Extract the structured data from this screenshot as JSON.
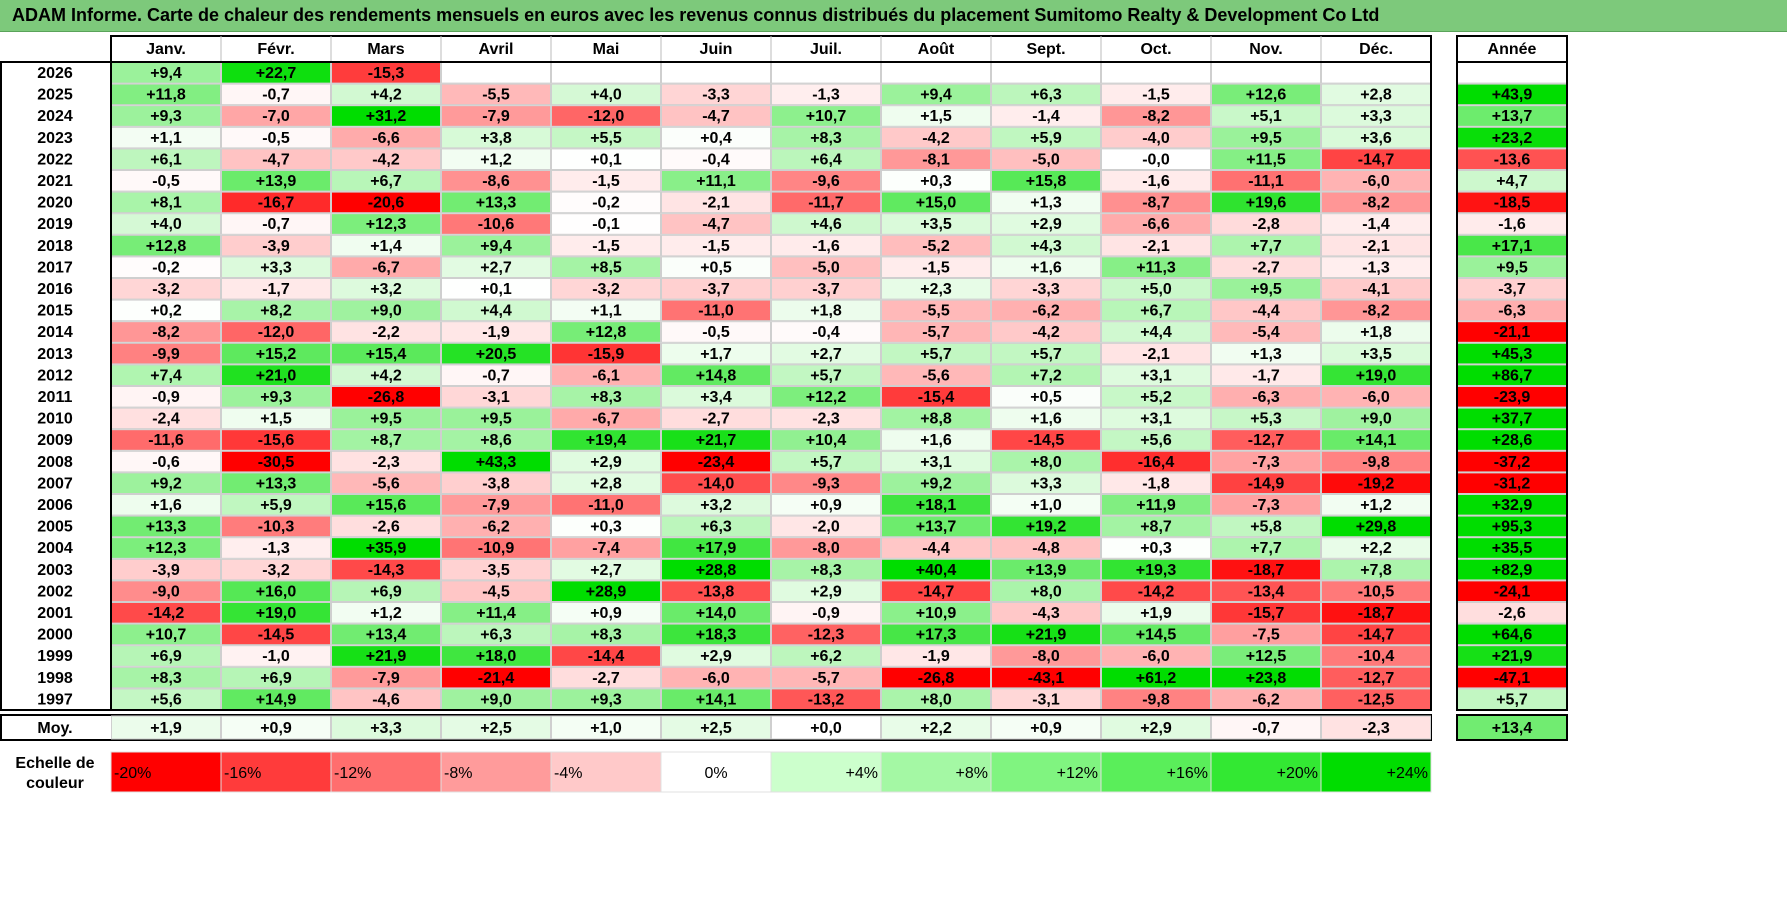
{
  "title": "ADAM Informe. Carte de chaleur des rendements mensuels en euros avec les revenus connus distribués du placement Sumitomo Realty & Development Co Ltd",
  "chart_data": {
    "type": "heatmap",
    "title": "ADAM Informe. Carte de chaleur des rendements mensuels en euros avec les revenus connus distribués du placement Sumitomo Realty & Development Co Ltd",
    "months": [
      "Janv.",
      "Févr.",
      "Mars",
      "Avril",
      "Mai",
      "Juin",
      "Juil.",
      "Août",
      "Sept.",
      "Oct.",
      "Nov.",
      "Déc."
    ],
    "year_header": "Année",
    "rows": [
      {
        "year": "2026",
        "values": [
          9.4,
          22.7,
          -15.3,
          null,
          null,
          null,
          null,
          null,
          null,
          null,
          null,
          null
        ],
        "annual": null
      },
      {
        "year": "2025",
        "values": [
          11.8,
          -0.7,
          4.2,
          -5.5,
          4.0,
          -3.3,
          -1.3,
          9.4,
          6.3,
          -1.5,
          12.6,
          2.8
        ],
        "annual": 43.9
      },
      {
        "year": "2024",
        "values": [
          9.3,
          -7.0,
          31.2,
          -7.9,
          -12.0,
          -4.7,
          10.7,
          1.5,
          -1.4,
          -8.2,
          5.1,
          3.3
        ],
        "annual": 13.7
      },
      {
        "year": "2023",
        "values": [
          1.1,
          -0.5,
          -6.6,
          3.8,
          5.5,
          0.4,
          8.3,
          -4.2,
          5.9,
          -4.0,
          9.5,
          3.6
        ],
        "annual": 23.2
      },
      {
        "year": "2022",
        "values": [
          6.1,
          -4.7,
          -4.2,
          1.2,
          0.1,
          -0.4,
          6.4,
          -8.1,
          -5.0,
          -0.0,
          11.5,
          -14.7
        ],
        "annual": -13.6
      },
      {
        "year": "2021",
        "values": [
          -0.5,
          13.9,
          6.7,
          -8.6,
          -1.5,
          11.1,
          -9.6,
          0.3,
          15.8,
          -1.6,
          -11.1,
          -6.0
        ],
        "annual": 4.7
      },
      {
        "year": "2020",
        "values": [
          8.1,
          -16.7,
          -20.6,
          13.3,
          -0.2,
          -2.1,
          -11.7,
          15.0,
          1.3,
          -8.7,
          19.6,
          -8.2
        ],
        "annual": -18.5
      },
      {
        "year": "2019",
        "values": [
          4.0,
          -0.7,
          12.3,
          -10.6,
          -0.1,
          -4.7,
          4.6,
          3.5,
          2.9,
          -6.6,
          -2.8,
          -1.4
        ],
        "annual": -1.6
      },
      {
        "year": "2018",
        "values": [
          12.8,
          -3.9,
          1.4,
          9.4,
          -1.5,
          -1.5,
          -1.6,
          -5.2,
          4.3,
          -2.1,
          7.7,
          -2.1
        ],
        "annual": 17.1
      },
      {
        "year": "2017",
        "values": [
          -0.2,
          3.3,
          -6.7,
          2.7,
          8.5,
          0.5,
          -5.0,
          -1.5,
          1.6,
          11.3,
          -2.7,
          -1.3
        ],
        "annual": 9.5
      },
      {
        "year": "2016",
        "values": [
          -3.2,
          -1.7,
          3.2,
          0.1,
          -3.2,
          -3.7,
          -3.7,
          2.3,
          -3.3,
          5.0,
          9.5,
          -4.1
        ],
        "annual": -3.7
      },
      {
        "year": "2015",
        "values": [
          0.2,
          8.2,
          9.0,
          4.4,
          1.1,
          -11.0,
          1.8,
          -5.5,
          -6.2,
          6.7,
          -4.4,
          -8.2
        ],
        "annual": -6.3
      },
      {
        "year": "2014",
        "values": [
          -8.2,
          -12.0,
          -2.2,
          -1.9,
          12.8,
          -0.5,
          -0.4,
          -5.7,
          -4.2,
          4.4,
          -5.4,
          1.8
        ],
        "annual": -21.1
      },
      {
        "year": "2013",
        "values": [
          -9.9,
          15.2,
          15.4,
          20.5,
          -15.9,
          1.7,
          2.7,
          5.7,
          5.7,
          -2.1,
          1.3,
          3.5
        ],
        "annual": 45.3
      },
      {
        "year": "2012",
        "values": [
          7.4,
          21.0,
          4.2,
          -0.7,
          -6.1,
          14.8,
          5.7,
          -5.6,
          7.2,
          3.1,
          -1.7,
          19.0
        ],
        "annual": 86.7
      },
      {
        "year": "2011",
        "values": [
          -0.9,
          9.3,
          -26.8,
          -3.1,
          8.3,
          3.4,
          12.2,
          -15.4,
          0.5,
          5.2,
          -6.3,
          -6.0
        ],
        "annual": -23.9
      },
      {
        "year": "2010",
        "values": [
          -2.4,
          1.5,
          9.5,
          9.5,
          -6.7,
          -2.7,
          -2.3,
          8.8,
          1.6,
          3.1,
          5.3,
          9.0
        ],
        "annual": 37.7
      },
      {
        "year": "2009",
        "values": [
          -11.6,
          -15.6,
          8.7,
          8.6,
          19.4,
          21.7,
          10.4,
          1.6,
          -14.5,
          5.6,
          -12.7,
          14.1
        ],
        "annual": 28.6
      },
      {
        "year": "2008",
        "values": [
          -0.6,
          -30.5,
          -2.3,
          43.3,
          2.9,
          -23.4,
          5.7,
          3.1,
          8.0,
          -16.4,
          -7.3,
          -9.8
        ],
        "annual": -37.2
      },
      {
        "year": "2007",
        "values": [
          9.2,
          13.3,
          -5.6,
          -3.8,
          2.8,
          -14.0,
          -9.3,
          9.2,
          3.3,
          -1.8,
          -14.9,
          -19.2
        ],
        "annual": -31.2
      },
      {
        "year": "2006",
        "values": [
          1.6,
          5.9,
          15.6,
          -7.9,
          -11.0,
          3.2,
          0.9,
          18.1,
          1.0,
          11.9,
          -7.3,
          1.2
        ],
        "annual": 32.9
      },
      {
        "year": "2005",
        "values": [
          13.3,
          -10.3,
          -2.6,
          -6.2,
          0.3,
          6.3,
          -2.0,
          13.7,
          19.2,
          8.7,
          5.8,
          29.8
        ],
        "annual": 95.3
      },
      {
        "year": "2004",
        "values": [
          12.3,
          -1.3,
          35.9,
          -10.9,
          -7.4,
          17.9,
          -8.0,
          -4.4,
          -4.8,
          0.3,
          7.7,
          2.2
        ],
        "annual": 35.5
      },
      {
        "year": "2003",
        "values": [
          -3.9,
          -3.2,
          -14.3,
          -3.5,
          2.7,
          28.8,
          8.3,
          40.4,
          13.9,
          19.3,
          -18.7,
          7.8
        ],
        "annual": 82.9
      },
      {
        "year": "2002",
        "values": [
          -9.0,
          16.0,
          6.9,
          -4.5,
          28.9,
          -13.8,
          2.9,
          -14.7,
          8.0,
          -14.2,
          -13.4,
          -10.5
        ],
        "annual": -24.1
      },
      {
        "year": "2001",
        "values": [
          -14.2,
          19.0,
          1.2,
          11.4,
          0.9,
          14.0,
          -0.9,
          10.9,
          -4.3,
          1.9,
          -15.7,
          -18.7
        ],
        "annual": -2.6
      },
      {
        "year": "2000",
        "values": [
          10.7,
          -14.5,
          13.4,
          6.3,
          8.3,
          18.3,
          -12.3,
          17.3,
          21.9,
          14.5,
          -7.5,
          -14.7
        ],
        "annual": 64.6
      },
      {
        "year": "1999",
        "values": [
          6.9,
          -1.0,
          21.9,
          18.0,
          -14.4,
          2.9,
          6.2,
          -1.9,
          -8.0,
          -6.0,
          12.5,
          -10.4
        ],
        "annual": 21.9
      },
      {
        "year": "1998",
        "values": [
          8.3,
          6.9,
          -7.9,
          -21.4,
          -2.7,
          -6.0,
          -5.7,
          -26.8,
          -43.1,
          61.2,
          23.8,
          -12.7
        ],
        "annual": -47.1
      },
      {
        "year": "1997",
        "values": [
          5.6,
          14.9,
          -4.6,
          9.0,
          9.3,
          14.1,
          -13.2,
          8.0,
          -3.1,
          -9.8,
          -6.2,
          -12.5
        ],
        "annual": 5.7
      }
    ],
    "average": {
      "label": "Moy.",
      "values": [
        1.9,
        0.9,
        3.3,
        2.5,
        1.0,
        2.5,
        0.0,
        2.2,
        0.9,
        2.9,
        -0.7,
        -2.3
      ],
      "annual": 13.4
    },
    "scale": {
      "label_line1": "Echelle de",
      "label_line2": "couleur",
      "stops": [
        {
          "label": "-20%",
          "color": "#ff0000",
          "align": "left"
        },
        {
          "label": "-16%",
          "color": "#ff3b3b",
          "align": "left"
        },
        {
          "label": "-12%",
          "color": "#ff6e6e",
          "align": "left"
        },
        {
          "label": "-8%",
          "color": "#ff9b9b",
          "align": "left"
        },
        {
          "label": "-4%",
          "color": "#ffc9c9",
          "align": "left"
        },
        {
          "label": "0%",
          "color": "#ffffff",
          "align": "center"
        },
        {
          "label": "+4%",
          "color": "#ccffcc",
          "align": "right"
        },
        {
          "label": "+8%",
          "color": "#a4f8a4",
          "align": "right"
        },
        {
          "label": "+12%",
          "color": "#80f480",
          "align": "right"
        },
        {
          "label": "+16%",
          "color": "#5aee5a",
          "align": "right"
        },
        {
          "label": "+20%",
          "color": "#33e833",
          "align": "right"
        },
        {
          "label": "+24%",
          "color": "#00dd00",
          "align": "right"
        }
      ]
    },
    "colors": {
      "max_negative": "#ff0000",
      "neutral": "#ffffff",
      "max_positive": "#00dd00",
      "title_bar": "#7dc97b"
    }
  }
}
